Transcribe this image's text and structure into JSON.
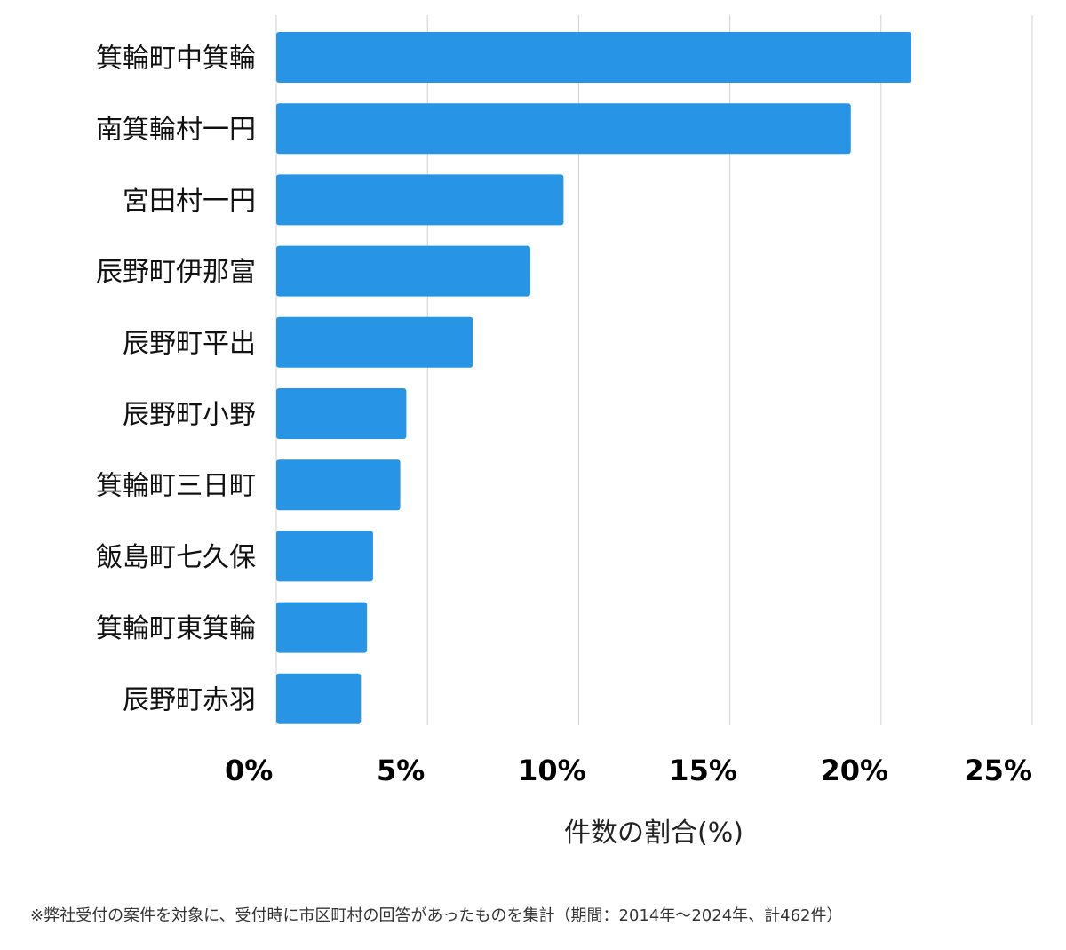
{
  "chart_data": {
    "type": "bar",
    "orientation": "horizontal",
    "categories": [
      "箕輪町中箕輪",
      "南箕輪村一円",
      "宮田村一円",
      "辰野町伊那富",
      "辰野町平出",
      "辰野町小野",
      "箕輪町三日町",
      "飯島町七久保",
      "箕輪町東箕輪",
      "辰野町赤羽"
    ],
    "values": [
      21.0,
      19.0,
      9.5,
      8.4,
      6.5,
      4.3,
      4.1,
      3.2,
      3.0,
      2.8
    ],
    "xlim": [
      0,
      25
    ],
    "xticks": [
      0,
      5,
      10,
      15,
      20,
      25
    ],
    "tick_labels": [
      "0%",
      "5%",
      "10%",
      "15%",
      "20%",
      "25%"
    ],
    "xlabel": "件数の割合(%)",
    "ylabel": "",
    "grid": true,
    "bar_color": "#2794e6",
    "grid_color": "#d0d0d0"
  },
  "footnote": "※弊社受付の案件を対象に、受付時に市区町村の回答があったものを集計（期間：2014年〜2024年、計462件）"
}
